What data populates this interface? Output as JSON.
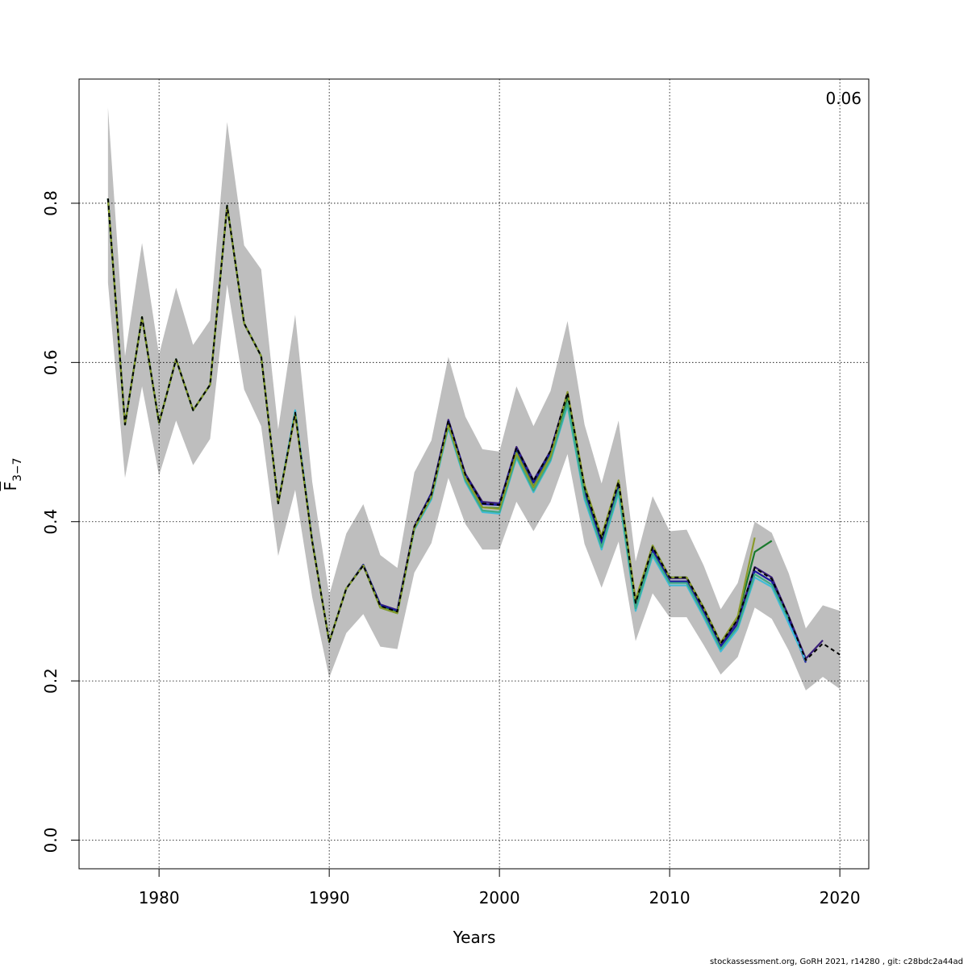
{
  "chart_data": {
    "type": "line",
    "title": "",
    "xlabel": "Years",
    "ylabel_main": "F",
    "ylabel_sub": "3−7",
    "corner_label": "0.06",
    "xlim": [
      1975.3,
      2021.7
    ],
    "ylim": [
      -0.036,
      0.956
    ],
    "xticks": [
      1980,
      1990,
      2000,
      2010,
      2020
    ],
    "yticks": [
      0.0,
      0.2,
      0.4,
      0.6,
      0.8
    ],
    "ytick_labels": [
      "0.0",
      "0.2",
      "0.4",
      "0.6",
      "0.8"
    ],
    "grid": true,
    "band_color": "#bebebe",
    "confidence_band": {
      "x": [
        1977,
        1978,
        1979,
        1980,
        1981,
        1982,
        1983,
        1984,
        1985,
        1986,
        1987,
        1988,
        1989,
        1990,
        1991,
        1992,
        1993,
        1994,
        1995,
        1996,
        1997,
        1998,
        1999,
        2000,
        2001,
        2002,
        2003,
        2004,
        2005,
        2006,
        2007,
        2008,
        2009,
        2010,
        2011,
        2012,
        2013,
        2014,
        2015,
        2016,
        2017,
        2018,
        2019,
        2020
      ],
      "lower": [
        0.7,
        0.455,
        0.57,
        0.458,
        0.527,
        0.471,
        0.504,
        0.698,
        0.566,
        0.52,
        0.357,
        0.44,
        0.305,
        0.204,
        0.26,
        0.284,
        0.243,
        0.24,
        0.336,
        0.373,
        0.455,
        0.397,
        0.365,
        0.365,
        0.425,
        0.388,
        0.425,
        0.485,
        0.372,
        0.317,
        0.375,
        0.25,
        0.31,
        0.28,
        0.28,
        0.245,
        0.208,
        0.23,
        0.292,
        0.278,
        0.238,
        0.188,
        0.205,
        0.19
      ],
      "upper": [
        0.92,
        0.608,
        0.75,
        0.61,
        0.694,
        0.622,
        0.653,
        0.902,
        0.747,
        0.717,
        0.516,
        0.66,
        0.45,
        0.308,
        0.385,
        0.422,
        0.358,
        0.342,
        0.462,
        0.502,
        0.607,
        0.532,
        0.491,
        0.488,
        0.57,
        0.52,
        0.564,
        0.652,
        0.522,
        0.448,
        0.527,
        0.35,
        0.432,
        0.388,
        0.39,
        0.345,
        0.29,
        0.323,
        0.4,
        0.386,
        0.335,
        0.266,
        0.295,
        0.288
      ]
    },
    "series": [
      {
        "color": "#000000",
        "x": [
          1977,
          1978,
          1979,
          1980,
          1981,
          1982,
          1983,
          1984,
          1985,
          1986,
          1987,
          1988,
          1989,
          1990,
          1991,
          1992,
          1993,
          1994,
          1995,
          1996,
          1997,
          1998,
          1999,
          2000,
          2001,
          2002,
          2003,
          2004,
          2005,
          2006,
          2007,
          2008,
          2009,
          2010,
          2011,
          2012,
          2013,
          2014,
          2015,
          2016,
          2017,
          2018,
          2019,
          2020
        ],
        "y": [
          0.806,
          0.522,
          0.657,
          0.524,
          0.604,
          0.54,
          0.572,
          0.797,
          0.649,
          0.608,
          0.423,
          0.537,
          0.375,
          0.249,
          0.316,
          0.345,
          0.294,
          0.287,
          0.394,
          0.434,
          0.527,
          0.459,
          0.423,
          0.421,
          0.493,
          0.451,
          0.489,
          0.562,
          0.443,
          0.379,
          0.45,
          0.298,
          0.368,
          0.33,
          0.33,
          0.291,
          0.247,
          0.277,
          0.342,
          0.328,
          0.28,
          0.226,
          0.247,
          0.233
        ],
        "dash": true
      },
      {
        "color": "#3a1f7a",
        "x": [
          1977,
          1978,
          1979,
          1980,
          1981,
          1982,
          1983,
          1984,
          1985,
          1986,
          1987,
          1988,
          1989,
          1990,
          1991,
          1992,
          1993,
          1994,
          1995,
          1996,
          1997,
          1998,
          1999,
          2000,
          2001,
          2002,
          2003,
          2004,
          2005,
          2006,
          2007,
          2008,
          2009,
          2010,
          2011,
          2012,
          2013,
          2014,
          2015,
          2016,
          2017,
          2018,
          2019
        ],
        "y": [
          0.806,
          0.522,
          0.657,
          0.524,
          0.604,
          0.54,
          0.572,
          0.797,
          0.649,
          0.608,
          0.423,
          0.538,
          0.376,
          0.249,
          0.316,
          0.346,
          0.296,
          0.289,
          0.394,
          0.436,
          0.528,
          0.46,
          0.425,
          0.423,
          0.494,
          0.452,
          0.489,
          0.562,
          0.442,
          0.378,
          0.448,
          0.297,
          0.367,
          0.329,
          0.329,
          0.29,
          0.246,
          0.276,
          0.343,
          0.33,
          0.281,
          0.228,
          0.251
        ]
      },
      {
        "color": "#1a1aa0",
        "x": [
          1977,
          1978,
          1979,
          1980,
          1981,
          1982,
          1983,
          1984,
          1985,
          1986,
          1987,
          1988,
          1989,
          1990,
          1991,
          1992,
          1993,
          1994,
          1995,
          1996,
          1997,
          1998,
          1999,
          2000,
          2001,
          2002,
          2003,
          2004,
          2005,
          2006,
          2007,
          2008,
          2009,
          2010,
          2011,
          2012,
          2013,
          2014,
          2015,
          2016,
          2017,
          2018
        ],
        "y": [
          0.806,
          0.522,
          0.657,
          0.524,
          0.604,
          0.54,
          0.572,
          0.797,
          0.649,
          0.608,
          0.423,
          0.539,
          0.376,
          0.249,
          0.316,
          0.346,
          0.295,
          0.288,
          0.393,
          0.435,
          0.526,
          0.458,
          0.422,
          0.421,
          0.491,
          0.449,
          0.487,
          0.56,
          0.437,
          0.373,
          0.443,
          0.294,
          0.364,
          0.325,
          0.325,
          0.286,
          0.243,
          0.272,
          0.338,
          0.325,
          0.276,
          0.223
        ]
      },
      {
        "color": "#1b7a2e",
        "x": [
          1977,
          1978,
          1979,
          1980,
          1981,
          1982,
          1983,
          1984,
          1985,
          1986,
          1987,
          1988,
          1989,
          1990,
          1991,
          1992,
          1993,
          1994,
          1995,
          1996,
          1997,
          1998,
          1999,
          2000,
          2001,
          2002,
          2003,
          2004,
          2005,
          2006,
          2007,
          2008,
          2009,
          2010,
          2011,
          2012,
          2013,
          2014,
          2015,
          2016
        ],
        "y": [
          0.806,
          0.522,
          0.657,
          0.524,
          0.604,
          0.54,
          0.572,
          0.797,
          0.649,
          0.608,
          0.423,
          0.536,
          0.375,
          0.249,
          0.316,
          0.345,
          0.293,
          0.286,
          0.392,
          0.432,
          0.522,
          0.455,
          0.418,
          0.417,
          0.487,
          0.444,
          0.483,
          0.557,
          0.443,
          0.38,
          0.451,
          0.299,
          0.37,
          0.33,
          0.33,
          0.292,
          0.248,
          0.28,
          0.362,
          0.376
        ]
      },
      {
        "color": "#40bcd8",
        "x": [
          1977,
          1978,
          1979,
          1980,
          1981,
          1982,
          1983,
          1984,
          1985,
          1986,
          1987,
          1988,
          1989,
          1990,
          1991,
          1992,
          1993,
          1994,
          1995,
          1996,
          1997,
          1998,
          1999,
          2000,
          2001,
          2002,
          2003,
          2004,
          2005,
          2006,
          2007,
          2008,
          2009,
          2010,
          2011,
          2012,
          2013,
          2014,
          2015,
          2016,
          2017,
          2018
        ],
        "y": [
          0.806,
          0.522,
          0.657,
          0.524,
          0.604,
          0.54,
          0.572,
          0.797,
          0.649,
          0.608,
          0.423,
          0.54,
          0.376,
          0.249,
          0.316,
          0.345,
          0.292,
          0.285,
          0.39,
          0.428,
          0.518,
          0.45,
          0.412,
          0.41,
          0.48,
          0.437,
          0.476,
          0.546,
          0.428,
          0.365,
          0.436,
          0.288,
          0.357,
          0.32,
          0.32,
          0.28,
          0.237,
          0.265,
          0.33,
          0.318,
          0.272,
          0.225
        ]
      },
      {
        "color": "#3daa88",
        "x": [
          1977,
          1978,
          1979,
          1980,
          1981,
          1982,
          1983,
          1984,
          1985,
          1986,
          1987,
          1988,
          1989,
          1990,
          1991,
          1992,
          1993,
          1994,
          1995,
          1996,
          1997,
          1998,
          1999,
          2000,
          2001,
          2002,
          2003,
          2004,
          2005,
          2006,
          2007,
          2008,
          2009,
          2010,
          2011,
          2012,
          2013,
          2014,
          2015,
          2016,
          2017
        ],
        "y": [
          0.806,
          0.522,
          0.657,
          0.524,
          0.604,
          0.54,
          0.572,
          0.797,
          0.649,
          0.608,
          0.423,
          0.536,
          0.375,
          0.249,
          0.316,
          0.345,
          0.292,
          0.285,
          0.391,
          0.43,
          0.52,
          0.452,
          0.414,
          0.412,
          0.482,
          0.439,
          0.478,
          0.549,
          0.432,
          0.368,
          0.44,
          0.291,
          0.36,
          0.323,
          0.323,
          0.283,
          0.24,
          0.268,
          0.334,
          0.321,
          0.277
        ]
      },
      {
        "color": "#8a9a2a",
        "x": [
          1977,
          1978,
          1979,
          1980,
          1981,
          1982,
          1983,
          1984,
          1985,
          1986,
          1987,
          1988,
          1989,
          1990,
          1991,
          1992,
          1993,
          1994,
          1995,
          1996,
          1997,
          1998,
          1999,
          2000,
          2001,
          2002,
          2003,
          2004,
          2005,
          2006,
          2007,
          2008,
          2009,
          2010,
          2011,
          2012,
          2013,
          2014,
          2015
        ],
        "y": [
          0.806,
          0.522,
          0.657,
          0.524,
          0.604,
          0.54,
          0.572,
          0.797,
          0.649,
          0.608,
          0.423,
          0.535,
          0.375,
          0.249,
          0.316,
          0.345,
          0.292,
          0.285,
          0.392,
          0.432,
          0.522,
          0.455,
          0.418,
          0.416,
          0.486,
          0.443,
          0.482,
          0.563,
          0.446,
          0.382,
          0.452,
          0.302,
          0.37,
          0.33,
          0.33,
          0.292,
          0.248,
          0.281,
          0.38
        ]
      }
    ]
  },
  "footer": {
    "credit": "stockassessment.org, GoRH  2021, r14280 , git: c28bdc2a44ad"
  }
}
